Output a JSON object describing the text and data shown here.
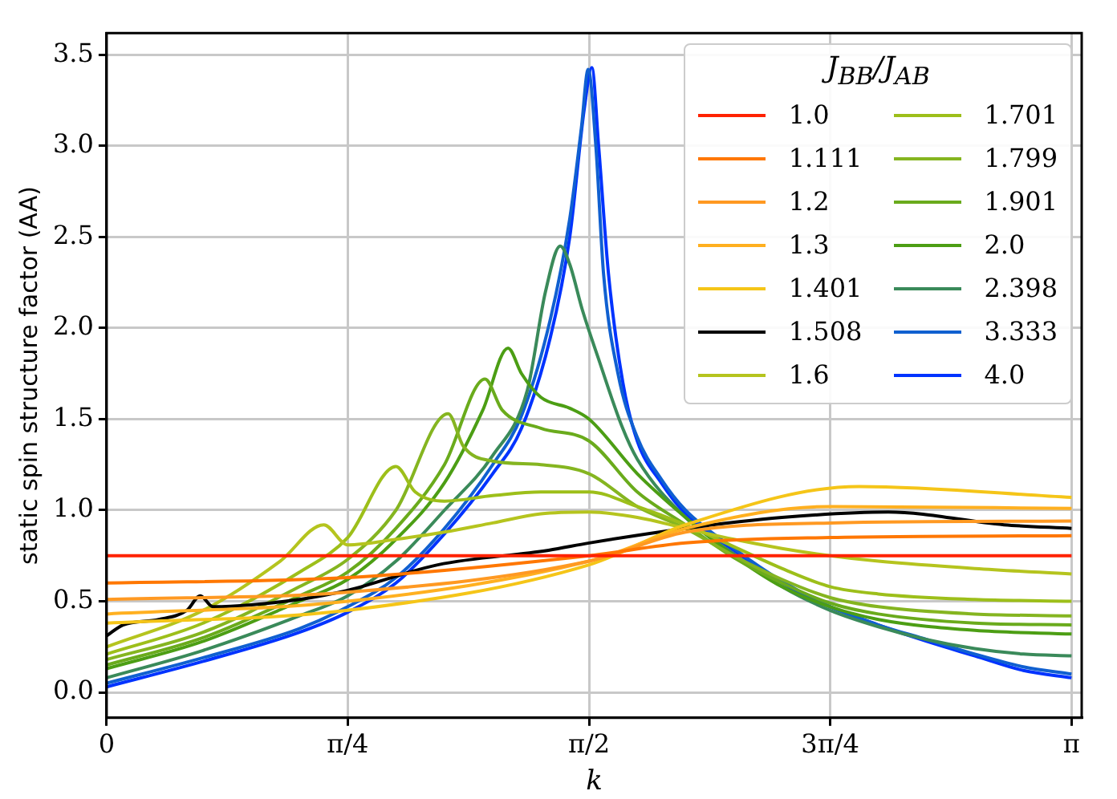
{
  "chart_data": {
    "type": "line",
    "xlabel": "k",
    "ylabel": "static spin structure factor (AA)",
    "legend_title": "J$_{BB}$/J$_{AB}$",
    "legend": "top right",
    "grid": true,
    "marker": "none",
    "line_style": "solid",
    "xlim": [
      0,
      3.175
    ],
    "xticks": [
      {
        "value": 0,
        "label": "0"
      },
      {
        "value": 0.785,
        "label": "π/4"
      },
      {
        "value": 1.571,
        "label": "π/2"
      },
      {
        "value": 2.356,
        "label": "3π/4"
      },
      {
        "value": 3.142,
        "label": "π"
      }
    ],
    "ylim": [
      -0.14,
      3.62
    ],
    "yticks": [
      {
        "value": 0,
        "label": "0.0"
      },
      {
        "value": 0.5,
        "label": "0.5"
      },
      {
        "value": 1,
        "label": "1.0"
      },
      {
        "value": 1.5,
        "label": "1.5"
      },
      {
        "value": 2,
        "label": "2.0"
      },
      {
        "value": 2.5,
        "label": "2.5"
      },
      {
        "value": 3,
        "label": "3.0"
      },
      {
        "value": 3.5,
        "label": "3.5"
      }
    ],
    "series": [
      {
        "name": "1.0",
        "color": "#ff2200",
        "x": [
          0,
          3.142
        ],
        "values": [
          0.75,
          0.75
        ]
      },
      {
        "name": "1.111",
        "color": "#ff7700",
        "x": [
          0,
          0.785,
          1.571,
          1.885,
          2.356,
          3.142
        ],
        "values": [
          0.6,
          0.63,
          0.75,
          0.82,
          0.85,
          0.86
        ]
      },
      {
        "name": "1.2",
        "color": "#ff9922",
        "x": [
          0,
          0.785,
          1.571,
          1.885,
          2.356,
          3.142
        ],
        "values": [
          0.51,
          0.55,
          0.72,
          0.88,
          0.93,
          0.94
        ]
      },
      {
        "name": "1.3",
        "color": "#ffb020",
        "x": [
          0,
          0.785,
          1.571,
          1.885,
          2.356,
          3.142
        ],
        "values": [
          0.43,
          0.5,
          0.72,
          0.9,
          1.02,
          1.01
        ]
      },
      {
        "name": "1.401",
        "color": "#f5c518",
        "x": [
          0,
          0.785,
          1.571,
          1.885,
          2.45,
          3.142
        ],
        "values": [
          0.38,
          0.45,
          0.7,
          0.92,
          1.13,
          1.07
        ]
      },
      {
        "name": "1.508",
        "color": "#000000",
        "x": [
          0,
          0.053,
          0.17,
          0.261,
          0.305,
          0.346,
          0.628,
          0.785,
          1.078,
          1.439,
          1.571,
          1.885,
          2.199,
          2.545,
          2.922,
          3.142
        ],
        "values": [
          0.31,
          0.37,
          0.4,
          0.45,
          0.53,
          0.47,
          0.51,
          0.56,
          0.7,
          0.78,
          0.82,
          0.9,
          0.96,
          0.99,
          0.92,
          0.9
        ]
      },
      {
        "name": "1.6",
        "color": "#b5c41e",
        "x": [
          0,
          0.314,
          0.565,
          0.707,
          0.785,
          0.942,
          1.1,
          1.257,
          1.414,
          1.571,
          1.728,
          1.885,
          2.042,
          2.199,
          2.356,
          2.513,
          2.827,
          3.142
        ],
        "values": [
          0.25,
          0.45,
          0.72,
          0.92,
          0.81,
          0.84,
          0.88,
          0.93,
          0.98,
          0.99,
          0.96,
          0.9,
          0.84,
          0.79,
          0.75,
          0.72,
          0.68,
          0.65
        ]
      },
      {
        "name": "1.701",
        "color": "#9dbf1a",
        "x": [
          0,
          0.314,
          0.628,
          0.785,
          0.942,
          1.005,
          1.1,
          1.257,
          1.414,
          1.571,
          1.728,
          1.885,
          2.042,
          2.199,
          2.356,
          2.513,
          2.827,
          3.142
        ],
        "values": [
          0.21,
          0.38,
          0.66,
          0.85,
          1.24,
          1.1,
          1.05,
          1.08,
          1.1,
          1.1,
          1.02,
          0.92,
          0.8,
          0.68,
          0.58,
          0.54,
          0.51,
          0.5
        ]
      },
      {
        "name": "1.799",
        "color": "#85b520",
        "x": [
          0,
          0.314,
          0.628,
          0.785,
          0.942,
          1.112,
          1.162,
          1.257,
          1.414,
          1.571,
          1.728,
          1.885,
          2.042,
          2.199,
          2.356,
          2.513,
          2.827,
          3.142
        ],
        "values": [
          0.18,
          0.33,
          0.58,
          0.73,
          1.0,
          1.53,
          1.35,
          1.27,
          1.25,
          1.2,
          1.02,
          0.9,
          0.75,
          0.62,
          0.52,
          0.47,
          0.43,
          0.42
        ]
      },
      {
        "name": "1.901",
        "color": "#6aab1c",
        "x": [
          0,
          0.314,
          0.628,
          0.785,
          0.942,
          1.1,
          1.232,
          1.288,
          1.414,
          1.571,
          1.728,
          1.885,
          2.042,
          2.199,
          2.356,
          2.513,
          2.827,
          3.142
        ],
        "values": [
          0.15,
          0.3,
          0.53,
          0.66,
          0.9,
          1.25,
          1.72,
          1.55,
          1.45,
          1.38,
          1.1,
          0.92,
          0.74,
          0.6,
          0.49,
          0.43,
          0.38,
          0.37
        ]
      },
      {
        "name": "2.0",
        "color": "#4c9e14",
        "x": [
          0,
          0.314,
          0.628,
          0.785,
          0.942,
          1.1,
          1.225,
          1.307,
          1.351,
          1.414,
          1.508,
          1.571,
          1.728,
          1.885,
          2.042,
          2.199,
          2.356,
          2.513,
          2.827,
          3.142
        ],
        "values": [
          0.13,
          0.28,
          0.5,
          0.62,
          0.84,
          1.15,
          1.55,
          1.89,
          1.75,
          1.62,
          1.56,
          1.5,
          1.2,
          0.96,
          0.75,
          0.58,
          0.47,
          0.4,
          0.34,
          0.32
        ]
      },
      {
        "name": "2.398",
        "color": "#3a8a5a",
        "x": [
          0,
          0.314,
          0.628,
          0.785,
          0.942,
          1.1,
          1.257,
          1.37,
          1.429,
          1.477,
          1.508,
          1.549,
          1.602,
          1.678,
          1.728,
          1.885,
          2.042,
          2.199,
          2.356,
          2.513,
          2.67,
          2.827,
          2.985,
          3.142
        ],
        "values": [
          0.08,
          0.23,
          0.42,
          0.53,
          0.72,
          1.0,
          1.3,
          1.66,
          2.2,
          2.45,
          2.35,
          2.1,
          1.83,
          1.46,
          1.28,
          0.96,
          0.76,
          0.58,
          0.45,
          0.36,
          0.29,
          0.24,
          0.21,
          0.2
        ]
      },
      {
        "name": "3.333",
        "color": "#1060d0",
        "x": [
          0,
          0.314,
          0.628,
          0.785,
          0.942,
          1.1,
          1.257,
          1.351,
          1.445,
          1.508,
          1.546,
          1.568,
          1.593,
          1.618,
          1.665,
          1.728,
          1.806,
          1.885,
          2.042,
          2.199,
          2.356,
          2.513,
          2.67,
          2.827,
          2.985,
          3.142
        ],
        "values": [
          0.05,
          0.19,
          0.35,
          0.47,
          0.63,
          0.9,
          1.25,
          1.52,
          2.05,
          2.6,
          3.1,
          3.42,
          3.0,
          2.3,
          1.75,
          1.4,
          1.17,
          1.0,
          0.79,
          0.61,
          0.47,
          0.37,
          0.29,
          0.21,
          0.14,
          0.1
        ]
      },
      {
        "name": "4.0",
        "color": "#0033ff",
        "x": [
          0,
          0.314,
          0.628,
          0.785,
          0.942,
          1.1,
          1.257,
          1.351,
          1.445,
          1.508,
          1.555,
          1.58,
          1.602,
          1.634,
          1.681,
          1.728,
          1.806,
          1.885,
          2.042,
          2.199,
          2.356,
          2.513,
          2.67,
          2.827,
          2.985,
          3.142
        ],
        "values": [
          0.03,
          0.17,
          0.33,
          0.44,
          0.6,
          0.87,
          1.2,
          1.45,
          1.95,
          2.5,
          3.2,
          3.43,
          3.0,
          2.3,
          1.7,
          1.38,
          1.15,
          0.98,
          0.78,
          0.6,
          0.47,
          0.37,
          0.28,
          0.2,
          0.12,
          0.08
        ]
      }
    ]
  }
}
